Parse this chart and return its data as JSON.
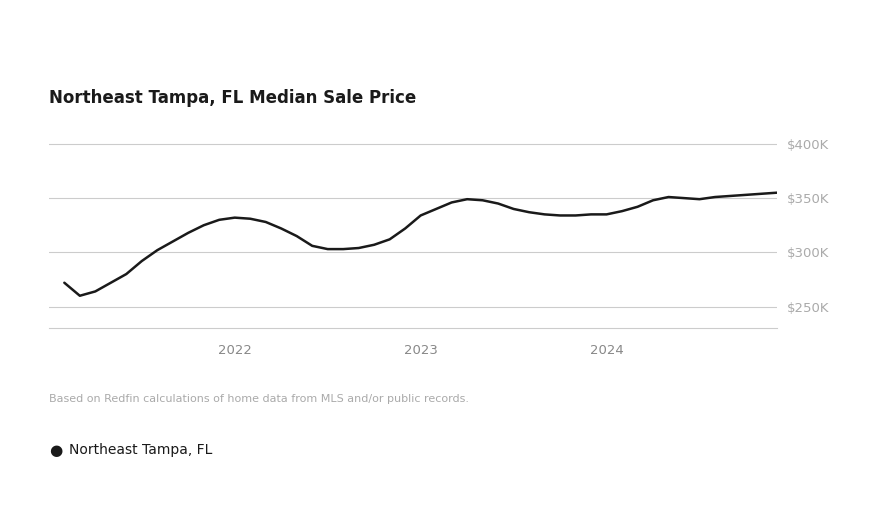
{
  "title": "Northeast Tampa, FL Median Sale Price",
  "title_fontsize": 12,
  "title_fontweight": "bold",
  "background_color": "#ffffff",
  "line_color": "#1a1a1a",
  "line_width": 1.8,
  "yticks": [
    250000,
    300000,
    350000,
    400000
  ],
  "ylim": [
    230000,
    420000
  ],
  "grid_color": "#cccccc",
  "footnote": "Based on Redfin calculations of home data from MLS and/or public records.",
  "legend_label": "Northeast Tampa, FL",
  "legend_marker_color": "#1a1a1a",
  "x_labels": [
    "2022",
    "2023",
    "2024"
  ],
  "x_tick_positions": [
    12,
    24,
    36
  ],
  "xlim_min": 0,
  "xlim_max": 47,
  "data_x": [
    1,
    2,
    3,
    4,
    5,
    6,
    7,
    8,
    9,
    10,
    11,
    12,
    13,
    14,
    15,
    16,
    17,
    18,
    19,
    20,
    21,
    22,
    23,
    24,
    25,
    26,
    27,
    28,
    29,
    30,
    31,
    32,
    33,
    34,
    35,
    36,
    37,
    38,
    39,
    40,
    41,
    42,
    43,
    44,
    45,
    46,
    47
  ],
  "data_y": [
    272000,
    260000,
    264000,
    272000,
    280000,
    292000,
    302000,
    310000,
    318000,
    325000,
    330000,
    332000,
    331000,
    328000,
    322000,
    315000,
    306000,
    303000,
    303000,
    304000,
    307000,
    312000,
    322000,
    334000,
    340000,
    346000,
    349000,
    348000,
    345000,
    340000,
    337000,
    335000,
    334000,
    334000,
    335000,
    335000,
    338000,
    342000,
    348000,
    351000,
    350000,
    349000,
    351000,
    352000,
    353000,
    354000,
    355000
  ]
}
